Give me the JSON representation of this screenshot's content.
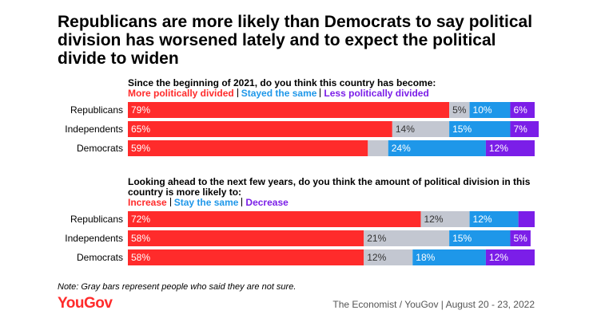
{
  "title": "Republicans are more likely than Democrats to say political division has worsened lately and to expect the political divide to widen",
  "chart_data": [
    {
      "type": "stacked-bar",
      "orientation": "horizontal",
      "subtitle": "Since the beginning of 2021, do you think this country has become:",
      "categories": [
        "Republicans",
        "Independents",
        "Democrats"
      ],
      "xlim": [
        0,
        100
      ],
      "series": [
        {
          "name": "More politically divided",
          "color": "#ff2b2b",
          "values": [
            79,
            65,
            59
          ],
          "value_labels": [
            "79%",
            "65%",
            "59%"
          ]
        },
        {
          "color": "#c3c7d1",
          "values": [
            5,
            14,
            5
          ],
          "value_labels": [
            "5%",
            "14%",
            null
          ]
        },
        {
          "name": "Stayed the same",
          "color": "#1e97e9",
          "values": [
            10,
            15,
            24
          ],
          "value_labels": [
            "10%",
            "15%",
            "24%"
          ]
        },
        {
          "name": "Less politically divided",
          "color": "#7b1ee8",
          "values": [
            6,
            7,
            12
          ],
          "value_labels": [
            "6%",
            "7%",
            "12%"
          ]
        }
      ]
    },
    {
      "type": "stacked-bar",
      "orientation": "horizontal",
      "subtitle": "Looking ahead to the next few years, do you think the amount of political division in this country is more likely to:",
      "categories": [
        "Republicans",
        "Independents",
        "Democrats"
      ],
      "xlim": [
        0,
        100
      ],
      "series": [
        {
          "name": "Increase",
          "color": "#ff2b2b",
          "values": [
            72,
            58,
            58
          ],
          "value_labels": [
            "72%",
            "58%",
            "58%"
          ]
        },
        {
          "color": "#c3c7d1",
          "values": [
            12,
            21,
            12
          ],
          "value_labels": [
            "12%",
            "21%",
            "12%"
          ]
        },
        {
          "name": "Stay the same",
          "color": "#1e97e9",
          "values": [
            12,
            15,
            18
          ],
          "value_labels": [
            "12%",
            "15%",
            "18%"
          ]
        },
        {
          "name": "Decrease",
          "color": "#7b1ee8",
          "values": [
            4,
            5,
            12
          ],
          "value_labels": [
            null,
            "5%",
            "12%"
          ]
        }
      ]
    }
  ],
  "note": "Note: Gray bars represent people who said they are not sure.",
  "brand": "YouGov",
  "source": "The Economist / YouGov | August 20 - 23, 2022"
}
